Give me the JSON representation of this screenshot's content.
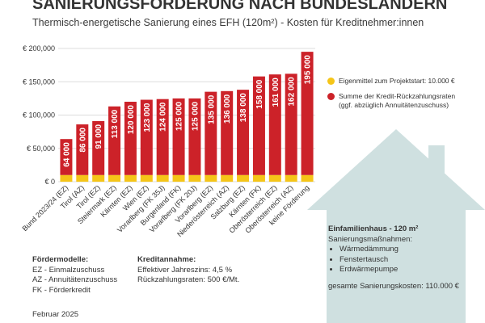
{
  "header": {
    "title": "SANIERUNGSFÖRDERUNG NACH BUNDESLÄNDERN",
    "subtitle": "Thermisch-energetische Sanierung eines EFH (120m²) - Kosten für Kreditnehmer:innen"
  },
  "chart_data": {
    "type": "bar",
    "stacked": true,
    "categories": [
      "Bund 2023/24 (EZ)",
      "Tirol (AZ)",
      "Tirol (EZ)",
      "Steiermark (EZ)",
      "Kärnten (EZ)",
      "Wien (EZ)",
      "Vorarlberg (FK 35J)",
      "Burgenland (FK)",
      "Vorarlberg (FK 20J)",
      "Vorarlberg (EZ)",
      "Niederösterreich (AZ)",
      "Salzburg (EZ)",
      "Kärnten (FK)",
      "Oberösterreich (EZ)",
      "Oberösterreich (AZ)",
      "keine Förderung"
    ],
    "totals": [
      64000,
      86000,
      91000,
      113000,
      120000,
      123000,
      124000,
      125000,
      125000,
      135000,
      136000,
      138000,
      158000,
      161000,
      162000,
      195000
    ],
    "value_labels": [
      "64 000",
      "86 000",
      "91 000",
      "113 000",
      "120 000",
      "123 000",
      "124 000",
      "125 000",
      "125 000",
      "135 000",
      "136 000",
      "138 000",
      "158 000",
      "161 000",
      "162 000",
      "195 000"
    ],
    "series": [
      {
        "name": "Eigenmittel zum Projektstart: 10.000 €",
        "color": "#f5c518",
        "values": [
          10000,
          10000,
          10000,
          10000,
          10000,
          10000,
          10000,
          10000,
          10000,
          10000,
          10000,
          10000,
          10000,
          10000,
          10000,
          10000
        ]
      },
      {
        "name": "Summe der Kredit-Rückzahlungsraten (ggf. abzüglich Annuitätenzuschuss)",
        "color": "#cc2229",
        "values": [
          54000,
          76000,
          81000,
          103000,
          110000,
          113000,
          114000,
          115000,
          115000,
          125000,
          126000,
          128000,
          148000,
          151000,
          152000,
          185000
        ]
      }
    ],
    "yticks": [
      0,
      50000,
      100000,
      150000,
      200000
    ],
    "ytick_labels": [
      "€ 0",
      "€ 50,000",
      "€ 100,000",
      "€ 150,000",
      "€ 200,000"
    ],
    "ylim": [
      0,
      200000
    ],
    "grid": true,
    "title": "SANIERUNGSFÖRDERUNG NACH BUNDESLÄNDERN"
  },
  "legend": {
    "item1": "Eigenmittel zum Projektstart: 10.000 €",
    "item2_line1": "Summe der Kredit-Rückzahlungsraten",
    "item2_line2": "(ggf. abzüglich Annuitätenzuschuss)",
    "yellow": "#f5c518",
    "red": "#cc2229"
  },
  "house_box": {
    "title": "Einfamilienhaus - 120 m²",
    "measures_label": "Sanierungsmaßnahmen:",
    "measures": [
      "Wärmedämmung",
      "Fenstertausch",
      "Erdwärmepumpe"
    ],
    "cost": "gesamte Sanierungskosten: 110.000 €",
    "house_color": "#cfe0e0"
  },
  "footer": {
    "models_title": "Fördermodelle:",
    "models": [
      "EZ - Einmalzuschuss",
      "AZ - Annuitätenzuschuss",
      "FK - Förderkredit"
    ],
    "credit_title": "Kreditannahme:",
    "credit": [
      "Effektiver Jahreszins: 4,5 %",
      "Rückzahlungsraten: 500 €/Mt."
    ],
    "date": "Februar 2025"
  }
}
